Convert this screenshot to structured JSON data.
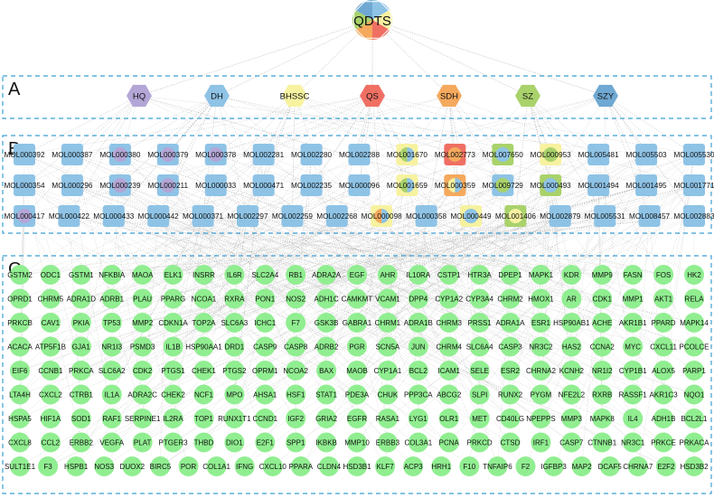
{
  "root": {
    "label": "QDTS"
  },
  "sections": [
    {
      "id": "A",
      "label": "A"
    },
    {
      "id": "B",
      "label": "B"
    },
    {
      "id": "C",
      "label": "C"
    }
  ],
  "herbs": [
    {
      "label": "HQ",
      "color": "#b3a6d6"
    },
    {
      "label": "DH",
      "color": "#8ec3e6"
    },
    {
      "label": "BHSSC",
      "color": "#f7f2a0"
    },
    {
      "label": "QS",
      "color": "#ef6f63"
    },
    {
      "label": "SDH",
      "color": "#f4a95d"
    },
    {
      "label": "SZ",
      "color": "#a9d26b"
    },
    {
      "label": "SZY",
      "color": "#6fa8d2"
    }
  ],
  "compound_rows": [
    [
      "MOL000392",
      "MOL000387",
      "MOL000380",
      "MOL000379",
      "MOL000378",
      "MOL002281",
      "MOL002280",
      "MOL002288",
      "MOL001670",
      "MOL002773",
      "MOL007650",
      "MOL000953",
      "MOL005481",
      "MOL005503",
      "MOL005530"
    ],
    [
      "MOL000354",
      "MOL000296",
      "MOL000239",
      "MOL000211",
      "MOL000033",
      "MOL000471",
      "MOL002235",
      "MOL000096",
      "MOL001659",
      "MOL000359",
      "MOL009729",
      "MOL000493",
      "MOL001494",
      "MOL001495",
      "MOL001771"
    ],
    [
      "MOL000417",
      "MOL000422",
      "MOL000433",
      "MOL000442",
      "MOL000371",
      "MOL002297",
      "MOL002259",
      "MOL002268",
      "MOL000098",
      "MOL000358",
      "MOL000449",
      "MOL001406",
      "MOL002879",
      "MOL005531",
      "MOL008457",
      "MOL002883"
    ]
  ],
  "compound_colors": [
    [
      "#8ec3e6",
      "#8ec3e6",
      "#8ec3e6|#b3a6d6",
      "#8ec3e6|#b3a6d6",
      "#8ec3e6|#b3a6d6",
      "#8ec3e6",
      "#8ec3e6",
      "#8ec3e6",
      "#f7f2a0|#8ec3e6|#a9d26b",
      "#ef6f63|#f4a95d",
      "#a9d26b|#8ec3e6",
      "#f7f2a0|#a9d26b",
      "#8ec3e6",
      "#8ec3e6",
      "#8ec3e6"
    ],
    [
      "#8ec3e6",
      "#8ec3e6",
      "#8ec3e6|#b3a6d6",
      "#8ec3e6|#b3a6d6",
      "#8ec3e6",
      "#8ec3e6",
      "#8ec3e6",
      "#8ec3e6",
      "#f7f2a0|#8ec3e6|#a9d26b",
      "#f4a95d|#8ec3e6|#f7f2a0",
      "#8ec3e6|#a9d26b",
      "#a9d26b|#8ec3e6",
      "#8ec3e6",
      "#8ec3e6",
      "#8ec3e6"
    ],
    [
      "#8ec3e6|#b3a6d6",
      "#8ec3e6",
      "#8ec3e6",
      "#8ec3e6",
      "#8ec3e6",
      "#8ec3e6",
      "#8ec3e6",
      "#8ec3e6",
      "#f7f2a0|#8ec3e6|#f4a95d",
      "#8ec3e6",
      "#f7f2a0|#8ec3e6",
      "#a9d26b|#f7f2a0",
      "#8ec3e6",
      "#8ec3e6",
      "#8ec3e6",
      "#8ec3e6"
    ]
  ],
  "target_rows": [
    [
      "GSTM2",
      "ODC1",
      "GSTM1",
      "NFKBIA",
      "MAOA",
      "ELK1",
      "INSRR",
      "IL6R",
      "SLC2A4",
      "RB1",
      "ADRA2A",
      "EGF",
      "AHR",
      "IL10RA",
      "CSTP1",
      "HTR3A",
      "DPEP1",
      "MAPK1",
      "KDR",
      "MMP9",
      "FASN",
      "FOS",
      "HK2"
    ],
    [
      "OPRD1",
      "CHRM5",
      "ADRA1D",
      "ADRB1",
      "PLAU",
      "PPARG",
      "NCOA1",
      "RXRA",
      "PON1",
      "NOS2",
      "ADH1C",
      "CAMKMT",
      "VCAM1",
      "DPP4",
      "CYP1A2",
      "CYP3A4",
      "CHRM2",
      "HMOX1",
      "AR",
      "CDK1",
      "MMP1",
      "AKT1",
      "RELA"
    ],
    [
      "PRKCB",
      "CAV1",
      "PKIA",
      "TP53",
      "MMP2",
      "CDKN1A",
      "TOP2A",
      "SLC6A3",
      "ICHC1",
      "F7",
      "GSK3B",
      "GABRA1",
      "CHRM1",
      "ADRA1B",
      "CHRM3",
      "PRSS1",
      "ADRA1A",
      "ESR1",
      "HSP90AB1",
      "ACHE",
      "AKR1B1",
      "PPARD",
      "MAPK14"
    ],
    [
      "ACACA",
      "ATP5F1B",
      "GJA1",
      "NR1I3",
      "PSMD3",
      "IL1B",
      "HSP90AA1",
      "DRD1",
      "CASP9",
      "CASP8",
      "ADRB2",
      "PGR",
      "SCN5A",
      "JUN",
      "CHRM4",
      "SLC6A4",
      "CASP3",
      "NR3C2",
      "HAS2",
      "CCNA2",
      "MYC",
      "CXCL11",
      "PCOLCE"
    ],
    [
      "EIF6",
      "CCNB1",
      "PRKCA",
      "SLC6A2",
      "CDK2",
      "PTGS1",
      "CHEK1",
      "PTGS2",
      "OPRM1",
      "NCOA2",
      "BAX",
      "MAOB",
      "CYP1A1",
      "BCL2",
      "ICAM1",
      "SELE",
      "ESR2",
      "CHRNA2",
      "KCNH2",
      "NR1I2",
      "CYP1B1",
      "ALOX5",
      "PARP1"
    ],
    [
      "LTA4H",
      "CXCL2",
      "CTRB1",
      "IL1A",
      "ADRA2C",
      "CHEK2",
      "NCF1",
      "MPO",
      "AHSA1",
      "HSF1",
      "STAT1",
      "PDE3A",
      "CHUK",
      "PPP3CA",
      "ABCG2",
      "SLPI",
      "RUNX2",
      "PYGM",
      "NFE2L2",
      "RXRB",
      "RASSF1",
      "AKR1C3",
      "NQO1"
    ],
    [
      "HSPA5",
      "HIF1A",
      "SOD1",
      "RAF1",
      "SERPINE1",
      "IL2RA",
      "TOP1",
      "RUNX1T1",
      "CCND1",
      "IGF2",
      "GRIA2",
      "EGFR",
      "RASA1",
      "LYG1",
      "OLR1",
      "MET",
      "CD40LG",
      "NPEPPS",
      "MMP3",
      "MAPK8",
      "IL4",
      "ADH1B",
      "BCL2L1"
    ],
    [
      "CXCL8",
      "CCL2",
      "ERBB2",
      "VEGFA",
      "PLAT",
      "PTGER3",
      "THBD",
      "DIO1",
      "E2F1",
      "SPP1",
      "IKBKB",
      "MMP10",
      "ERBB3",
      "COL3A1",
      "PCNA",
      "PRKCD",
      "CTSD",
      "IRF1",
      "CASP7",
      "CTNNB1",
      "NR3C1",
      "PRKCE",
      "PRKACA"
    ],
    [
      "SULT1E1",
      "F3",
      "HSPB1",
      "NOS3",
      "DUOX2",
      "BIRC5",
      "POR",
      "COL1A1",
      "IFNG",
      "CXCL10",
      "PPARA",
      "CLDN4",
      "HSD3B1",
      "KLF7",
      "ACP3",
      "HRH1",
      "F10",
      "TNFAIP6",
      "F2",
      "IGFBP3",
      "MAP2",
      "DCAF5",
      "CHRNA7",
      "E2F2",
      "HSD3B2"
    ]
  ],
  "colors": {
    "box_border": "#3b9fd3",
    "edge": "#7a7a7a",
    "target_fill": "#90ee90",
    "root_colors": [
      "#8ec3e6",
      "#f7f2a0",
      "#ef6f63",
      "#f4a95d",
      "#a9d26b",
      "#6fa8d2"
    ]
  }
}
